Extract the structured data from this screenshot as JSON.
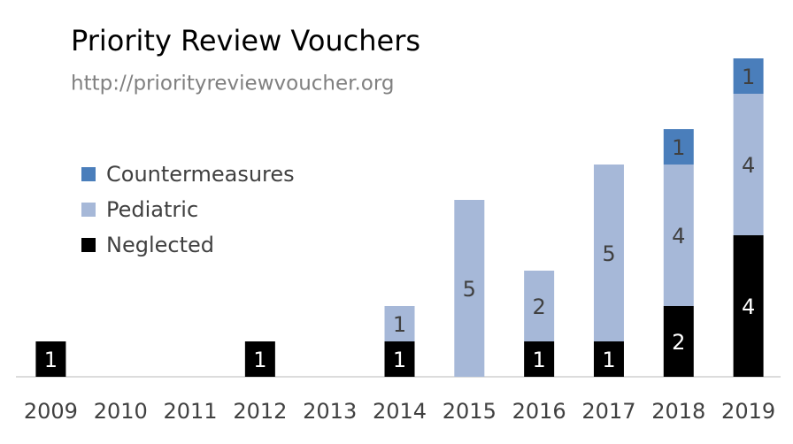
{
  "chart_data": {
    "type": "stacked_bar",
    "title": "Priority Review Vouchers",
    "subtitle": "http://priorityreviewvoucher.org",
    "categories": [
      "2009",
      "2010",
      "2011",
      "2012",
      "2013",
      "2014",
      "2015",
      "2016",
      "2017",
      "2018",
      "2019"
    ],
    "series": [
      {
        "name": "Neglected",
        "color": "#000000",
        "values": [
          1,
          null,
          null,
          1,
          null,
          1,
          null,
          1,
          1,
          2,
          4
        ]
      },
      {
        "name": "Pediatric",
        "color": "#a6b8d8",
        "values": [
          null,
          null,
          null,
          null,
          null,
          1,
          5,
          2,
          5,
          4,
          4
        ]
      },
      {
        "name": "Countermeasures",
        "color": "#4a7ebb",
        "values": [
          null,
          null,
          null,
          null,
          null,
          null,
          null,
          null,
          null,
          1,
          1
        ]
      }
    ]
  }
}
